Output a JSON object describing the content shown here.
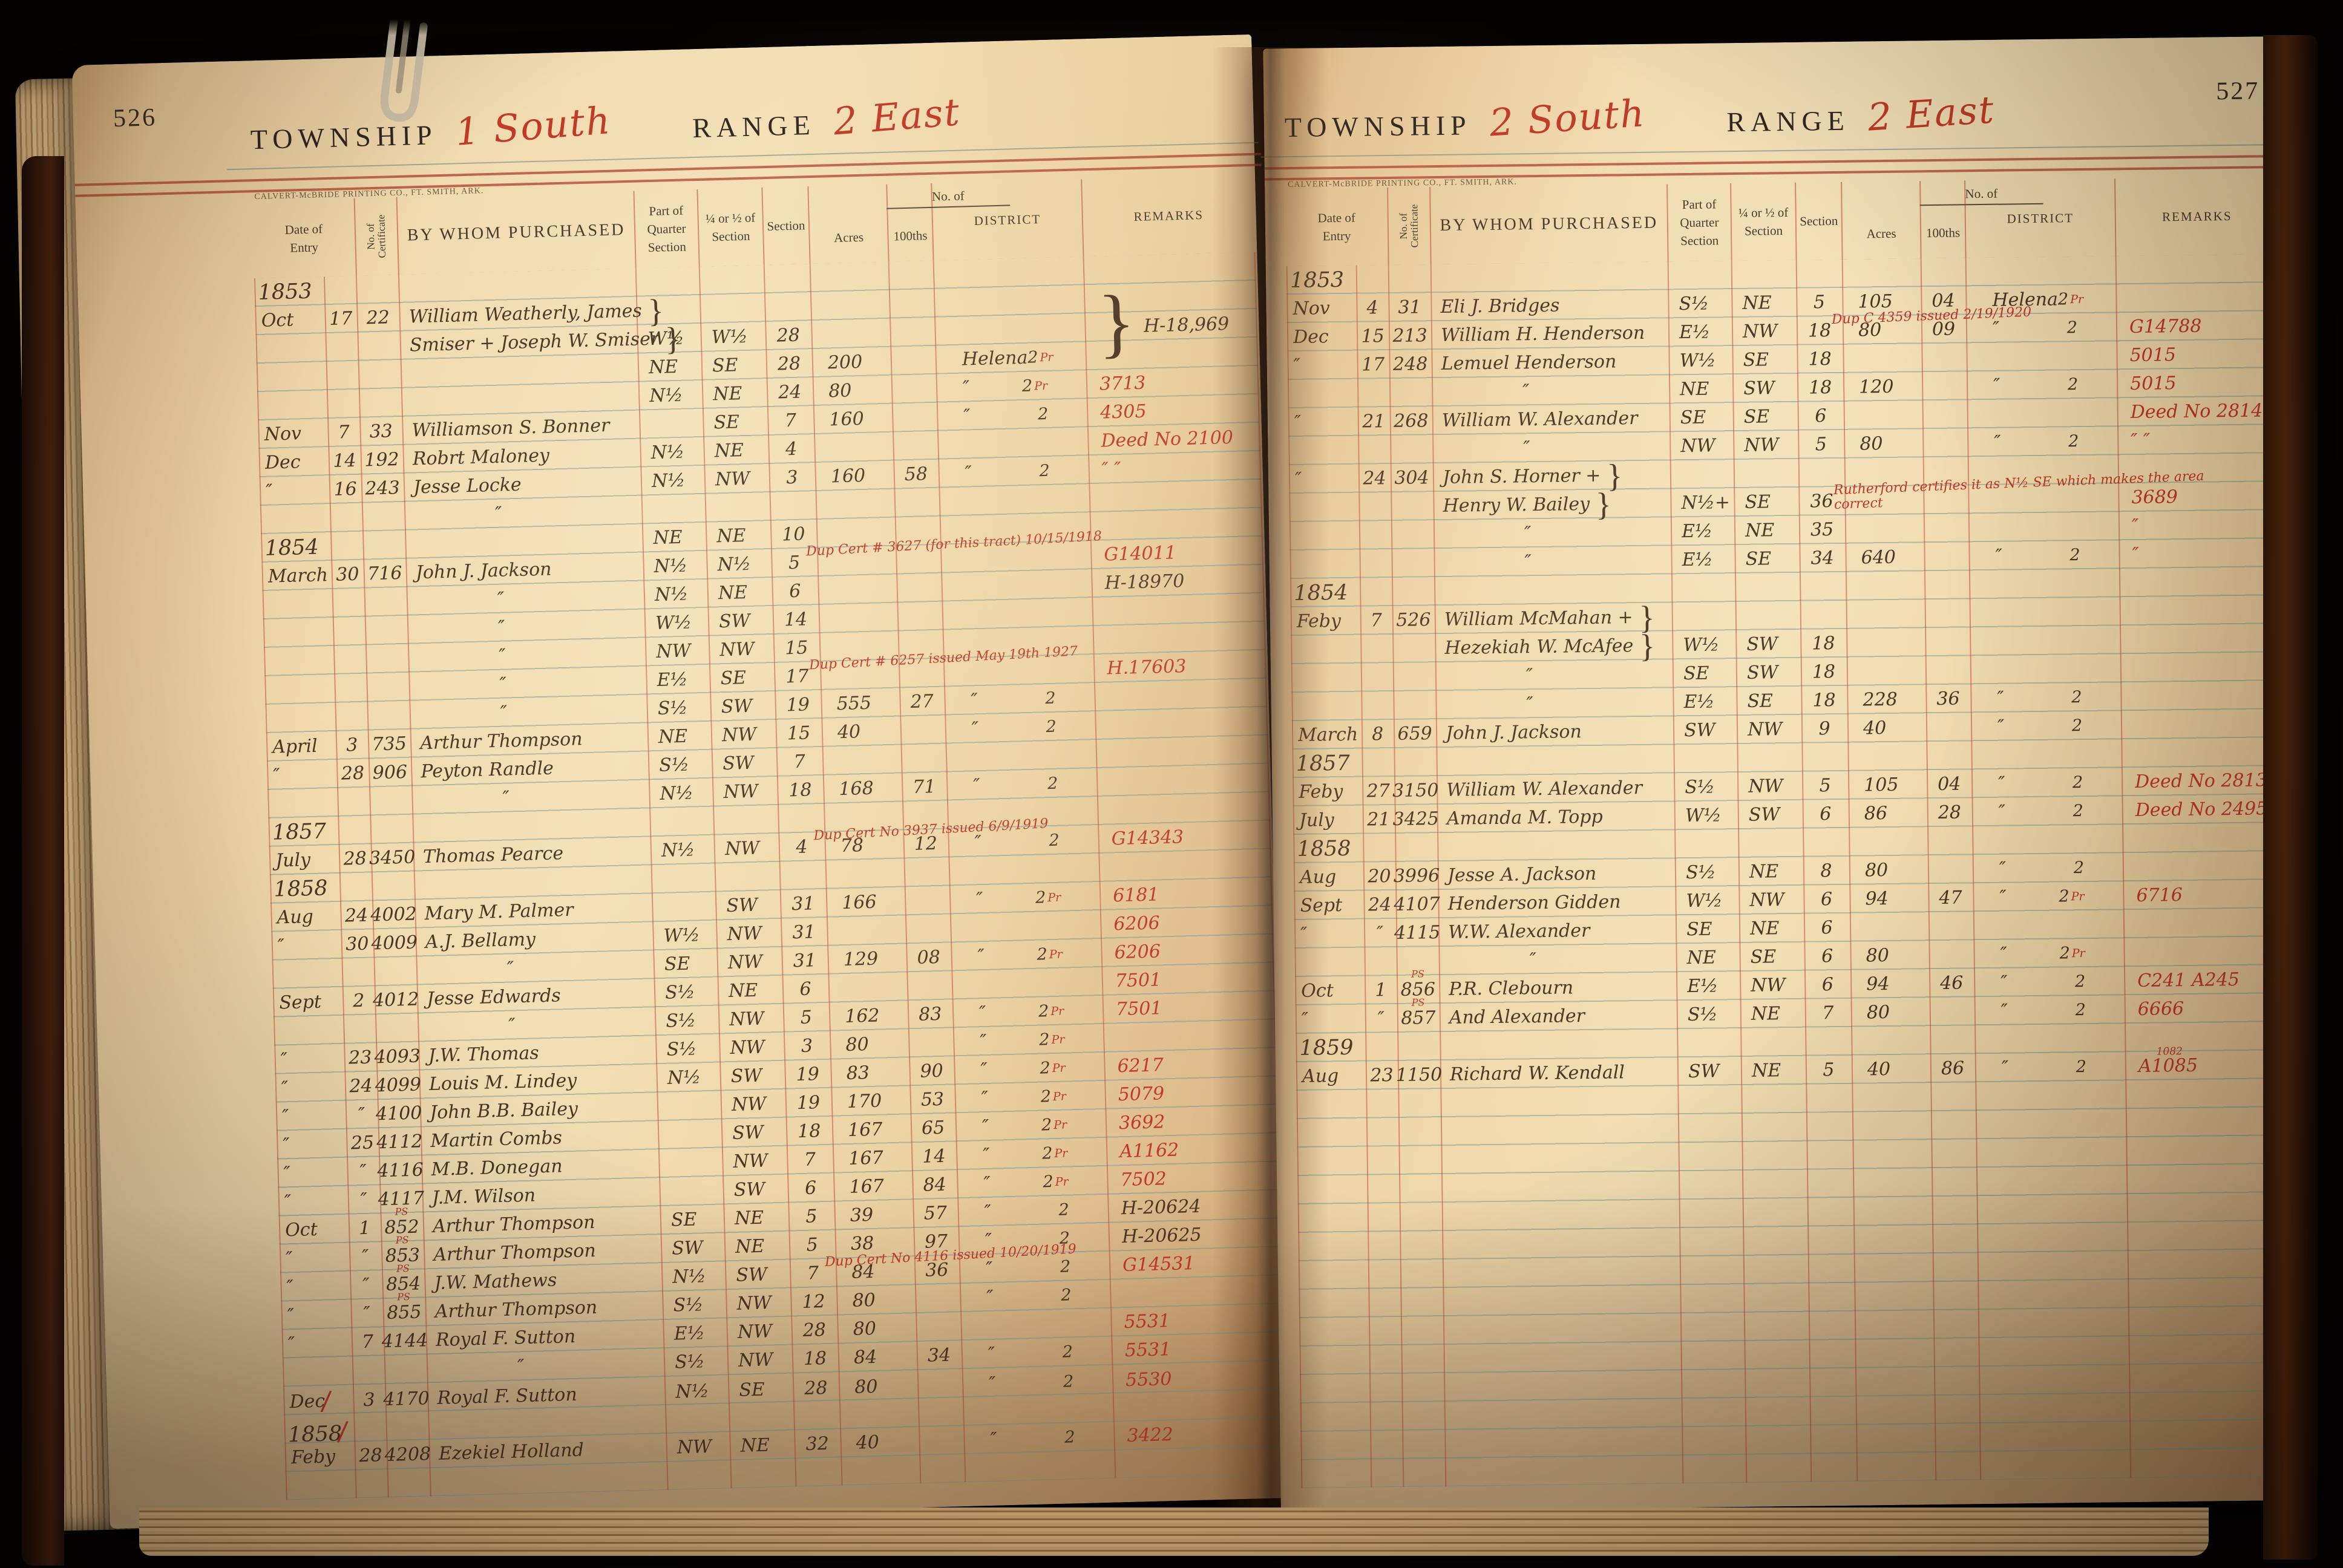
{
  "colors": {
    "red_ink": "#c13527",
    "black_ink": "#4b3424",
    "rule_red": "#ba4230",
    "rule_blue": "#749490",
    "paper": "#eed6a8"
  },
  "imprint": "CALVERT-McBRIDE PRINTING CO., FT. SMITH, ARK.",
  "columns": {
    "date1": "Date of",
    "date2": "Entry",
    "cert": "No. of\nCertificate",
    "purchased": "BY WHOM PURCHASED",
    "part1": "Part of",
    "part2": "Quarter Section",
    "qtr1": "¼ or ½ of",
    "qtr2": "Section",
    "section": "Section",
    "noof": "No. of",
    "acres": "Acres",
    "hund": "100ths",
    "district": "DISTRICT",
    "remarks": "REMARKS"
  },
  "left_page": {
    "number": "526",
    "township_label": "TOWNSHIP",
    "township_value": "1 South",
    "range_label": "RANGE",
    "range_value": "2 East",
    "rows": [
      {
        "year": "1853"
      },
      {
        "month": "Oct",
        "day": "17",
        "cert": "22",
        "name": "William Weatherly, James",
        "name_brace": true
      },
      {
        "name": "Smiser + Joseph W. Smiser",
        "name_brace": true,
        "part": "W½",
        "quarter": "W½",
        "section": "28",
        "big_brace": true,
        "remark": "H-18,969",
        "remark_color": "ink"
      },
      {
        "part": "NE",
        "quarter": "SE",
        "section": "28",
        "acres": "200",
        "district": "Helena",
        "district_no": "2",
        "pr": "Pr"
      },
      {
        "part": "N½",
        "quarter": "NE",
        "section": "24",
        "acres": "80",
        "district": "″",
        "district_no": "2",
        "pr": "Pr",
        "remark": "3713",
        "remark_color": "red"
      },
      {
        "month": "Nov",
        "day": "7",
        "cert": "33",
        "name": "Williamson S. Bonner",
        "quarter": "SE",
        "section": "7",
        "acres": "160",
        "district": "″",
        "district_no": "2",
        "remark": "4305",
        "remark_color": "red"
      },
      {
        "month": "Dec",
        "day": "14",
        "cert": "192",
        "name": "Robrt Maloney",
        "part": "N½",
        "quarter": "NE",
        "section": "4",
        "remark": "Deed No 2100",
        "remark_color": "red"
      },
      {
        "month": "″",
        "day": "16",
        "cert": "243",
        "name": "Jesse Locke",
        "part": "N½",
        "quarter": "NW",
        "section": "3",
        "acres": "160",
        "hundredths": "58",
        "district": "″",
        "district_no": "2",
        "remark": "″   ″",
        "remark_color": "red"
      },
      {
        "name": "″"
      },
      {
        "year": "1854",
        "part": "NE",
        "quarter": "NE",
        "section": "10"
      },
      {
        "month": "March",
        "day": "30",
        "cert": "716",
        "name": "John J. Jackson",
        "part": "N½",
        "quarter": "N½",
        "section": "5",
        "note": "Dup Cert # 3627 (for this tract) 10/15/1918",
        "remark": "G14011",
        "remark_color": "red"
      },
      {
        "name": "″",
        "part": "N½",
        "quarter": "NE",
        "section": "6",
        "remark": "H-18970",
        "remark_color": "ink"
      },
      {
        "name": "″",
        "part": "W½",
        "quarter": "SW",
        "section": "14"
      },
      {
        "name": "″",
        "part": "NW",
        "quarter": "NW",
        "section": "15"
      },
      {
        "name": "″",
        "part": "E½",
        "quarter": "SE",
        "section": "17",
        "note": "Dup Cert # 6257 issued May 19th 1927",
        "remark": "H.17603",
        "remark_color": "red"
      },
      {
        "name": "″",
        "part": "S½",
        "quarter": "SW",
        "section": "19",
        "acres": "555",
        "hundredths": "27",
        "district": "″",
        "district_no": "2"
      },
      {
        "month": "April",
        "day": "3",
        "cert": "735",
        "name": "Arthur Thompson",
        "part": "NE",
        "quarter": "NW",
        "section": "15",
        "acres": "40",
        "district": "″",
        "district_no": "2"
      },
      {
        "month": "″",
        "day": "28",
        "cert": "906",
        "name": "Peyton Randle",
        "part": "S½",
        "quarter": "SW",
        "section": "7"
      },
      {
        "name": "″",
        "part": "N½",
        "quarter": "NW",
        "section": "18",
        "acres": "168",
        "hundredths": "71",
        "district": "″",
        "district_no": "2"
      },
      {
        "year": "1857"
      },
      {
        "month": "July",
        "day": "28",
        "cert": "3450",
        "name": "Thomas Pearce",
        "part": "N½",
        "quarter": "NW",
        "section": "4",
        "acres": "78",
        "hundredths": "12",
        "district": "″",
        "district_no": "2",
        "note": "Dup Cert No 3937 issued 6/9/1919",
        "remark": "G14343",
        "remark_color": "red"
      },
      {
        "year": "1858"
      },
      {
        "month": "Aug",
        "day": "24",
        "cert": "4002",
        "name": "Mary M. Palmer",
        "quarter": "SW",
        "section": "31",
        "acres": "166",
        "district": "″",
        "district_no": "2",
        "pr": "Pr",
        "remark": "6181",
        "remark_color": "red"
      },
      {
        "month": "″",
        "day": "30",
        "cert": "4009",
        "name": "A.J. Bellamy",
        "part": "W½",
        "quarter": "NW",
        "section": "31",
        "remark": "6206",
        "remark_color": "red"
      },
      {
        "name": "″",
        "part": "SE",
        "quarter": "NW",
        "section": "31",
        "acres": "129",
        "hundredths": "08",
        "district": "″",
        "district_no": "2",
        "pr": "Pr",
        "remark": "6206",
        "remark_color": "red"
      },
      {
        "month": "Sept",
        "day": "2",
        "cert": "4012",
        "name": "Jesse Edwards",
        "part": "S½",
        "quarter": "NE",
        "section": "6",
        "remark": "7501",
        "remark_color": "red"
      },
      {
        "name": "″",
        "part": "S½",
        "quarter": "NW",
        "section": "5",
        "acres": "162",
        "hundredths": "83",
        "district": "″",
        "district_no": "2",
        "pr": "Pr",
        "remark": "7501",
        "remark_color": "red"
      },
      {
        "month": "″",
        "day": "23",
        "cert": "4093",
        "name": "J.W. Thomas",
        "part": "S½",
        "quarter": "NW",
        "section": "3",
        "acres": "80",
        "district": "″",
        "district_no": "2",
        "pr": "Pr"
      },
      {
        "month": "″",
        "day": "24",
        "cert": "4099",
        "name": "Louis M. Lindey",
        "part": "N½",
        "quarter": "SW",
        "section": "19",
        "acres": "83",
        "hundredths": "90",
        "district": "″",
        "district_no": "2",
        "pr": "Pr",
        "remark": "6217",
        "remark_color": "red"
      },
      {
        "month": "″",
        "day": "″",
        "cert": "4100",
        "name": "John B.B. Bailey",
        "quarter": "NW",
        "section": "19",
        "acres": "170",
        "hundredths": "53",
        "district": "″",
        "district_no": "2",
        "pr": "Pr",
        "remark": "5079",
        "remark_color": "red"
      },
      {
        "month": "″",
        "day": "25",
        "cert": "4112",
        "name": "Martin Combs",
        "quarter": "SW",
        "section": "18",
        "acres": "167",
        "hundredths": "65",
        "district": "″",
        "district_no": "2",
        "pr": "Pr",
        "remark": "3692",
        "remark_color": "red"
      },
      {
        "month": "″",
        "day": "″",
        "cert": "4116",
        "name": "M.B. Donegan",
        "quarter": "NW",
        "section": "7",
        "acres": "167",
        "hundredths": "14",
        "district": "″",
        "district_no": "2",
        "pr": "Pr",
        "remark": "A1162",
        "remark_color": "red"
      },
      {
        "month": "″",
        "day": "″",
        "cert": "4117",
        "name": "J.M. Wilson",
        "quarter": "SW",
        "section": "6",
        "acres": "167",
        "hundredths": "84",
        "district": "″",
        "district_no": "2",
        "pr": "Pr",
        "remark": "7502",
        "remark_color": "red"
      },
      {
        "month": "Oct",
        "day": "1",
        "ps": "PS",
        "cert": "852",
        "name": "Arthur Thompson",
        "part": "SE",
        "quarter": "NE",
        "section": "5",
        "acres": "39",
        "hundredths": "57",
        "district": "″",
        "district_no": "2",
        "remark": "H-20624",
        "remark_color": "ink"
      },
      {
        "month": "″",
        "day": "″",
        "ps": "PS",
        "cert": "853",
        "name": "Arthur Thompson",
        "part": "SW",
        "quarter": "NE",
        "section": "5",
        "acres": "38",
        "hundredths": "97",
        "district": "″",
        "district_no": "2",
        "remark": "H-20625",
        "remark_color": "ink"
      },
      {
        "month": "″",
        "day": "″",
        "ps": "PS",
        "cert": "854",
        "name": "J.W. Mathews",
        "part": "N½",
        "quarter": "SW",
        "section": "7",
        "acres": "84",
        "hundredths": "36",
        "district": "″",
        "district_no": "2",
        "note": "Dup Cert No 4116 issued 10/20/1919",
        "remark": "G14531",
        "remark_color": "red"
      },
      {
        "month": "″",
        "day": "″",
        "ps": "PS",
        "cert": "855",
        "name": "Arthur Thompson",
        "part": "S½",
        "quarter": "NW",
        "section": "12",
        "acres": "80",
        "district": "″",
        "district_no": "2"
      },
      {
        "month": "″",
        "day": "7",
        "cert": "4144",
        "name": "Royal F. Sutton",
        "part": "E½",
        "quarter": "NW",
        "section": "28",
        "acres": "80",
        "remark": "5531",
        "remark_color": "red"
      },
      {
        "name": "″",
        "part": "S½",
        "quarter": "NW",
        "section": "18",
        "acres": "84",
        "hundredths": "34",
        "district": "″",
        "district_no": "2",
        "remark": "5531",
        "remark_color": "red"
      },
      {
        "month": "Dec",
        "month_slash": true,
        "day": "3",
        "cert": "4170",
        "name": "Royal F. Sutton",
        "part": "N½",
        "quarter": "SE",
        "section": "28",
        "acres": "80",
        "district": "″",
        "district_no": "2",
        "remark": "5530",
        "remark_color": "red"
      },
      {
        "year": "1858",
        "year_slash": true
      },
      {
        "month": "Feby",
        "day": "28",
        "cert": "4208",
        "name": "Ezekiel Holland",
        "part": "NW",
        "quarter": "NE",
        "section": "32",
        "acres": "40",
        "district": "″",
        "district_no": "2",
        "remark": "3422",
        "remark_color": "red"
      }
    ]
  },
  "right_page": {
    "number": "527",
    "township_label": "TOWNSHIP",
    "township_value": "2 South",
    "range_label": "RANGE",
    "range_value": "2 East",
    "rows": [
      {
        "year": "1853"
      },
      {
        "month": "Nov",
        "day": "4",
        "cert": "31",
        "name": "Eli J. Bridges",
        "part": "S½",
        "quarter": "NE",
        "section": "5",
        "acres": "105",
        "hundredths": "04",
        "district": "Helena",
        "district_no": "2",
        "pr": "Pr"
      },
      {
        "month": "Dec",
        "day": "15",
        "cert": "213",
        "name": "William H. Henderson",
        "part": "E½",
        "quarter": "NW",
        "section": "18",
        "acres": "80",
        "hundredths": "09",
        "district": "″",
        "district_no": "2",
        "note": "Dup C 4359 issued 2/19/1920",
        "remark": "G14788",
        "remark_color": "red"
      },
      {
        "month": "″",
        "day": "17",
        "cert": "248",
        "name": "Lemuel Henderson",
        "part": "W½",
        "quarter": "SE",
        "section": "18",
        "remark": "5015",
        "remark_color": "red"
      },
      {
        "name": "″",
        "part": "NE",
        "quarter": "SW",
        "section": "18",
        "acres": "120",
        "district": "″",
        "district_no": "2",
        "remark": "5015",
        "remark_color": "red"
      },
      {
        "month": "″",
        "day": "21",
        "cert": "268",
        "name": "William W. Alexander",
        "part": "SE",
        "quarter": "SE",
        "section": "6",
        "remark": "Deed No 2814",
        "remark_color": "red"
      },
      {
        "name": "″",
        "part": "NW",
        "quarter": "NW",
        "section": "5",
        "acres": "80",
        "district": "″",
        "district_no": "2",
        "remark": "″   ″",
        "remark_color": "red"
      },
      {
        "month": "″",
        "day": "24",
        "cert": "304",
        "name": "John S. Horner +",
        "name_brace": true
      },
      {
        "name": "Henry W. Bailey",
        "name_brace": true,
        "part": "N½+",
        "quarter": "SE",
        "section": "36",
        "note": "Rutherford certifies it as N½ SE which makes the area correct",
        "remark": "3689",
        "remark_color": "red"
      },
      {
        "name": "″",
        "part": "E½",
        "quarter": "NE",
        "section": "35",
        "remark": "″",
        "remark_color": "red"
      },
      {
        "name": "″",
        "part": "E½",
        "quarter": "SE",
        "section": "34",
        "acres": "640",
        "district": "″",
        "district_no": "2",
        "remark": "″",
        "remark_color": "red"
      },
      {
        "year": "1854"
      },
      {
        "month": "Feby",
        "day": "7",
        "cert": "526",
        "name": "William McMahan +",
        "name_brace": true
      },
      {
        "name": "Hezekiah W. McAfee",
        "name_brace": true,
        "part": "W½",
        "quarter": "SW",
        "section": "18"
      },
      {
        "name": "″",
        "part": "SE",
        "quarter": "SW",
        "section": "18"
      },
      {
        "name": "″",
        "part": "E½",
        "quarter": "SE",
        "section": "18",
        "acres": "228",
        "hundredths": "36",
        "district": "″",
        "district_no": "2"
      },
      {
        "month": "March",
        "day": "8",
        "cert": "659",
        "name": "John J. Jackson",
        "part": "SW",
        "quarter": "NW",
        "section": "9",
        "acres": "40",
        "district": "″",
        "district_no": "2"
      },
      {
        "year": "1857"
      },
      {
        "month": "Feby",
        "day": "27",
        "cert": "3150",
        "name": "William W. Alexander",
        "part": "S½",
        "quarter": "NW",
        "section": "5",
        "acres": "105",
        "hundredths": "04",
        "district": "″",
        "district_no": "2",
        "remark": "Deed No 2813",
        "remark_color": "red"
      },
      {
        "month": "July",
        "day": "21",
        "cert": "3425",
        "name": "Amanda M. Topp",
        "part": "W½",
        "quarter": "SW",
        "section": "6",
        "acres": "86",
        "hundredths": "28",
        "district": "″",
        "district_no": "2",
        "remark": "Deed No 2495",
        "remark_color": "red"
      },
      {
        "year": "1858"
      },
      {
        "month": "Aug",
        "day": "20",
        "cert": "3996",
        "name": "Jesse A. Jackson",
        "part": "S½",
        "quarter": "NE",
        "section": "8",
        "acres": "80",
        "district": "″",
        "district_no": "2"
      },
      {
        "month": "Sept",
        "day": "24",
        "cert": "4107",
        "name": "Henderson Gidden",
        "part": "W½",
        "quarter": "NW",
        "section": "6",
        "acres": "94",
        "hundredths": "47",
        "district": "″",
        "district_no": "2",
        "pr": "Pr",
        "remark": "6716",
        "remark_color": "red"
      },
      {
        "month": "″",
        "day": "″",
        "cert": "4115",
        "name": "W.W. Alexander",
        "part": "SE",
        "quarter": "NE",
        "section": "6"
      },
      {
        "name": "″",
        "part": "NE",
        "quarter": "SE",
        "section": "6",
        "acres": "80",
        "district": "″",
        "district_no": "2",
        "pr": "Pr"
      },
      {
        "month": "Oct",
        "day": "1",
        "ps": "PS",
        "cert": "856",
        "name": "P.R. Clebourn",
        "part": "E½",
        "quarter": "NW",
        "section": "6",
        "acres": "94",
        "hundredths": "46",
        "district": "″",
        "district_no": "2",
        "remark": "C241  A245",
        "remark_color": "red"
      },
      {
        "month": "″",
        "day": "″",
        "ps": "PS",
        "cert": "857",
        "name": "And Alexander",
        "part": "S½",
        "quarter": "NE",
        "section": "7",
        "acres": "80",
        "district": "″",
        "district_no": "2",
        "remark": "6666",
        "remark_color": "red"
      },
      {
        "year": "1859"
      },
      {
        "month": "Aug",
        "day": "23",
        "cert": "1150",
        "name": "Richard W. Kendall",
        "part": "SW",
        "quarter": "NE",
        "section": "5",
        "acres": "40",
        "hundredths": "86",
        "district": "″",
        "district_no": "2",
        "remark": "A1085",
        "remark_sup": "1082",
        "remark_color": "red"
      }
    ]
  }
}
